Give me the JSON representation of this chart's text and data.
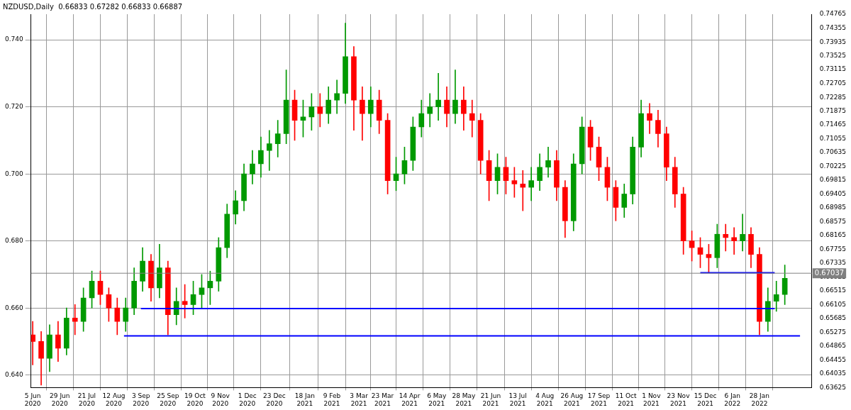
{
  "chart_data": {
    "type": "candlestick",
    "title": "NZDUSD,Daily  0.66833 0.67282 0.66833 0.66887",
    "x": [
      "2020-06-05",
      "2020-06-12",
      "2020-06-19",
      "2020-06-26",
      "2020-07-03",
      "2020-07-10",
      "2020-07-17",
      "2020-07-24",
      "2020-07-31",
      "2020-08-07",
      "2020-08-14",
      "2020-08-21",
      "2020-08-28",
      "2020-09-04",
      "2020-09-11",
      "2020-09-18",
      "2020-09-25",
      "2020-10-02",
      "2020-10-09",
      "2020-10-16",
      "2020-10-23",
      "2020-10-30",
      "2020-11-06",
      "2020-11-13",
      "2020-11-20",
      "2020-11-27",
      "2020-12-04",
      "2020-12-11",
      "2020-12-18",
      "2020-12-25",
      "2021-01-01",
      "2021-01-08",
      "2021-01-15",
      "2021-01-22",
      "2021-01-29",
      "2021-02-05",
      "2021-02-12",
      "2021-02-19",
      "2021-02-26",
      "2021-03-05",
      "2021-03-12",
      "2021-03-19",
      "2021-03-26",
      "2021-04-02",
      "2021-04-09",
      "2021-04-16",
      "2021-04-23",
      "2021-04-30",
      "2021-05-07",
      "2021-05-14",
      "2021-05-21",
      "2021-05-28",
      "2021-06-04",
      "2021-06-11",
      "2021-06-18",
      "2021-06-25",
      "2021-07-02",
      "2021-07-09",
      "2021-07-16",
      "2021-07-23",
      "2021-07-30",
      "2021-08-06",
      "2021-08-13",
      "2021-08-20",
      "2021-08-27",
      "2021-09-03",
      "2021-09-10",
      "2021-09-17",
      "2021-09-24",
      "2021-10-01",
      "2021-10-08",
      "2021-10-15",
      "2021-10-22",
      "2021-10-29",
      "2021-11-05",
      "2021-11-12",
      "2021-11-19",
      "2021-11-26",
      "2021-12-03",
      "2021-12-10",
      "2021-12-17",
      "2021-12-24",
      "2021-12-31",
      "2022-01-07",
      "2022-01-14",
      "2022-01-21",
      "2022-01-28",
      "2022-02-04",
      "2022-02-11",
      "2022-02-18"
    ],
    "ohlc": [
      [
        0.652,
        0.656,
        0.643,
        0.65
      ],
      [
        0.65,
        0.653,
        0.637,
        0.645
      ],
      [
        0.645,
        0.655,
        0.641,
        0.652
      ],
      [
        0.652,
        0.656,
        0.644,
        0.648
      ],
      [
        0.648,
        0.66,
        0.646,
        0.657
      ],
      [
        0.657,
        0.661,
        0.652,
        0.656
      ],
      [
        0.656,
        0.666,
        0.653,
        0.663
      ],
      [
        0.663,
        0.671,
        0.66,
        0.668
      ],
      [
        0.668,
        0.671,
        0.661,
        0.664
      ],
      [
        0.664,
        0.666,
        0.656,
        0.66
      ],
      [
        0.66,
        0.663,
        0.652,
        0.656
      ],
      [
        0.656,
        0.663,
        0.653,
        0.66
      ],
      [
        0.66,
        0.672,
        0.658,
        0.668
      ],
      [
        0.668,
        0.678,
        0.665,
        0.674
      ],
      [
        0.674,
        0.676,
        0.662,
        0.666
      ],
      [
        0.666,
        0.679,
        0.663,
        0.672
      ],
      [
        0.672,
        0.674,
        0.652,
        0.658
      ],
      [
        0.658,
        0.666,
        0.655,
        0.662
      ],
      [
        0.662,
        0.667,
        0.657,
        0.661
      ],
      [
        0.661,
        0.668,
        0.658,
        0.664
      ],
      [
        0.664,
        0.67,
        0.66,
        0.666
      ],
      [
        0.666,
        0.671,
        0.661,
        0.668
      ],
      [
        0.668,
        0.681,
        0.665,
        0.678
      ],
      [
        0.678,
        0.691,
        0.675,
        0.688
      ],
      [
        0.688,
        0.695,
        0.685,
        0.692
      ],
      [
        0.692,
        0.703,
        0.689,
        0.7
      ],
      [
        0.7,
        0.707,
        0.697,
        0.703
      ],
      [
        0.703,
        0.711,
        0.699,
        0.707
      ],
      [
        0.707,
        0.713,
        0.701,
        0.709
      ],
      [
        0.709,
        0.716,
        0.705,
        0.712
      ],
      [
        0.712,
        0.731,
        0.709,
        0.722
      ],
      [
        0.722,
        0.725,
        0.71,
        0.716
      ],
      [
        0.716,
        0.722,
        0.711,
        0.717
      ],
      [
        0.717,
        0.724,
        0.713,
        0.72
      ],
      [
        0.72,
        0.724,
        0.714,
        0.718
      ],
      [
        0.718,
        0.726,
        0.715,
        0.722
      ],
      [
        0.722,
        0.728,
        0.718,
        0.724
      ],
      [
        0.724,
        0.745,
        0.721,
        0.735
      ],
      [
        0.735,
        0.738,
        0.713,
        0.722
      ],
      [
        0.722,
        0.726,
        0.71,
        0.718
      ],
      [
        0.718,
        0.726,
        0.714,
        0.722
      ],
      [
        0.722,
        0.725,
        0.712,
        0.716
      ],
      [
        0.716,
        0.718,
        0.694,
        0.698
      ],
      [
        0.698,
        0.705,
        0.695,
        0.7
      ],
      [
        0.7,
        0.708,
        0.697,
        0.704
      ],
      [
        0.704,
        0.717,
        0.701,
        0.714
      ],
      [
        0.714,
        0.722,
        0.711,
        0.718
      ],
      [
        0.718,
        0.724,
        0.714,
        0.72
      ],
      [
        0.72,
        0.73,
        0.716,
        0.722
      ],
      [
        0.722,
        0.726,
        0.714,
        0.718
      ],
      [
        0.718,
        0.731,
        0.715,
        0.722
      ],
      [
        0.722,
        0.726,
        0.713,
        0.718
      ],
      [
        0.718,
        0.722,
        0.711,
        0.716
      ],
      [
        0.716,
        0.718,
        0.7,
        0.704
      ],
      [
        0.704,
        0.707,
        0.692,
        0.698
      ],
      [
        0.698,
        0.706,
        0.694,
        0.702
      ],
      [
        0.702,
        0.705,
        0.694,
        0.698
      ],
      [
        0.698,
        0.702,
        0.693,
        0.697
      ],
      [
        0.697,
        0.701,
        0.689,
        0.696
      ],
      [
        0.696,
        0.702,
        0.692,
        0.698
      ],
      [
        0.698,
        0.706,
        0.695,
        0.702
      ],
      [
        0.702,
        0.708,
        0.699,
        0.704
      ],
      [
        0.704,
        0.707,
        0.692,
        0.696
      ],
      [
        0.696,
        0.698,
        0.681,
        0.686
      ],
      [
        0.686,
        0.706,
        0.683,
        0.703
      ],
      [
        0.703,
        0.717,
        0.7,
        0.714
      ],
      [
        0.714,
        0.716,
        0.704,
        0.708
      ],
      [
        0.708,
        0.711,
        0.698,
        0.702
      ],
      [
        0.702,
        0.705,
        0.692,
        0.696
      ],
      [
        0.696,
        0.698,
        0.686,
        0.69
      ],
      [
        0.69,
        0.697,
        0.687,
        0.694
      ],
      [
        0.694,
        0.711,
        0.691,
        0.708
      ],
      [
        0.708,
        0.722,
        0.705,
        0.718
      ],
      [
        0.718,
        0.721,
        0.712,
        0.716
      ],
      [
        0.716,
        0.719,
        0.708,
        0.712
      ],
      [
        0.712,
        0.714,
        0.698,
        0.702
      ],
      [
        0.702,
        0.705,
        0.69,
        0.694
      ],
      [
        0.694,
        0.696,
        0.676,
        0.68
      ],
      [
        0.68,
        0.683,
        0.674,
        0.678
      ],
      [
        0.678,
        0.681,
        0.672,
        0.676
      ],
      [
        0.676,
        0.679,
        0.6705,
        0.675
      ],
      [
        0.675,
        0.685,
        0.672,
        0.682
      ],
      [
        0.682,
        0.685,
        0.677,
        0.681
      ],
      [
        0.681,
        0.684,
        0.676,
        0.68
      ],
      [
        0.68,
        0.688,
        0.677,
        0.682
      ],
      [
        0.682,
        0.684,
        0.672,
        0.676
      ],
      [
        0.676,
        0.678,
        0.652,
        0.656
      ],
      [
        0.656,
        0.666,
        0.653,
        0.662
      ],
      [
        0.662,
        0.668,
        0.659,
        0.664
      ],
      [
        0.664,
        0.67282,
        0.661,
        0.66887
      ]
    ],
    "colors": [
      "#ff0000",
      "#ff0000",
      "#009900",
      "#ff0000",
      "#009900",
      "#ff0000",
      "#009900",
      "#009900",
      "#ff0000",
      "#ff0000",
      "#ff0000",
      "#009900",
      "#009900",
      "#009900",
      "#ff0000",
      "#009900",
      "#ff0000",
      "#009900",
      "#ff0000",
      "#009900",
      "#009900",
      "#009900",
      "#009900",
      "#009900",
      "#009900",
      "#009900",
      "#009900",
      "#009900",
      "#009900",
      "#009900",
      "#009900",
      "#ff0000",
      "#009900",
      "#009900",
      "#ff0000",
      "#009900",
      "#009900",
      "#009900",
      "#ff0000",
      "#ff0000",
      "#009900",
      "#ff0000",
      "#ff0000",
      "#009900",
      "#009900",
      "#009900",
      "#009900",
      "#009900",
      "#009900",
      "#ff0000",
      "#009900",
      "#ff0000",
      "#ff0000",
      "#ff0000",
      "#ff0000",
      "#009900",
      "#ff0000",
      "#ff0000",
      "#ff0000",
      "#009900",
      "#009900",
      "#009900",
      "#ff0000",
      "#ff0000",
      "#009900",
      "#009900",
      "#ff0000",
      "#ff0000",
      "#ff0000",
      "#ff0000",
      "#009900",
      "#009900",
      "#009900",
      "#ff0000",
      "#ff0000",
      "#ff0000",
      "#ff0000",
      "#ff0000",
      "#ff0000",
      "#ff0000",
      "#ff0000",
      "#009900",
      "#ff0000",
      "#ff0000",
      "#009900",
      "#ff0000",
      "#ff0000",
      "#009900",
      "#009900",
      "#009900"
    ],
    "series": [
      {
        "type": "line",
        "color": "#0000ff",
        "x": [
          "2021-12-10",
          "2022-02-10"
        ],
        "values": [
          0.6705,
          0.6705
        ]
      },
      {
        "type": "line",
        "color": "#0000ff",
        "x": [
          "2020-09-03",
          "2022-02-10"
        ],
        "values": [
          0.6598,
          0.6598
        ]
      },
      {
        "type": "line",
        "color": "#0000ff",
        "x": [
          "2020-08-20",
          "2022-03-03"
        ],
        "values": [
          0.6517,
          0.6517
        ]
      }
    ],
    "ref_lines": [
      {
        "axis": "y2",
        "value": 0.67037,
        "label": "0.67037",
        "color": "#808080"
      }
    ],
    "xlim": [
      "2020-06-04",
      "2022-03-14"
    ],
    "xticks": [
      {
        "value": "2020-06-05",
        "label": "5 Jun 2020"
      },
      {
        "value": "2020-06-29",
        "label": "29 Jun 2020"
      },
      {
        "value": "2020-07-21",
        "label": "21 Jul 2020"
      },
      {
        "value": "2020-08-12",
        "label": "12 Aug 2020"
      },
      {
        "value": "2020-09-03",
        "label": "3 Sep 2020"
      },
      {
        "value": "2020-09-25",
        "label": "25 Sep 2020"
      },
      {
        "value": "2020-10-19",
        "label": "19 Oct 2020"
      },
      {
        "value": "2020-11-09",
        "label": "9 Nov 2020"
      },
      {
        "value": "2020-12-01",
        "label": "1 Dec 2020"
      },
      {
        "value": "2020-12-23",
        "label": "23 Dec 2020"
      },
      {
        "value": "2021-01-18",
        "label": "18 Jan 2021"
      },
      {
        "value": "2021-02-09",
        "label": "9 Feb 2021"
      },
      {
        "value": "2021-03-03",
        "label": "3 Mar 2021"
      },
      {
        "value": "2021-03-23",
        "label": "23 Mar 2021"
      },
      {
        "value": "2021-04-14",
        "label": "14 Apr 2021"
      },
      {
        "value": "2021-05-06",
        "label": "6 May 2021"
      },
      {
        "value": "2021-05-28",
        "label": "28 May 2021"
      },
      {
        "value": "2021-06-21",
        "label": "21 Jun 2021"
      },
      {
        "value": "2021-07-13",
        "label": "13 Jul 2021"
      },
      {
        "value": "2021-08-04",
        "label": "4 Aug 2021"
      },
      {
        "value": "2021-08-26",
        "label": "26 Aug 2021"
      },
      {
        "value": "2021-09-17",
        "label": "17 Sep 2021"
      },
      {
        "value": "2021-10-11",
        "label": "11 Oct 2021"
      },
      {
        "value": "2021-11-01",
        "label": "1 Nov 2021"
      },
      {
        "value": "2021-11-23",
        "label": "23 Nov 2021"
      },
      {
        "value": "2021-12-15",
        "label": "15 Dec 2021"
      },
      {
        "value": "2022-01-06",
        "label": "6 Jan 2022"
      },
      {
        "value": "2022-01-28",
        "label": "28 Jan 2022"
      }
    ],
    "ylim": [
      0.63625,
      0.74765
    ],
    "yticks": [
      {
        "value": 0.64,
        "label": "0.640"
      },
      {
        "value": 0.66,
        "label": "0.660"
      },
      {
        "value": 0.68,
        "label": "0.680"
      },
      {
        "value": 0.7,
        "label": "0.700"
      },
      {
        "value": 0.72,
        "label": "0.720"
      },
      {
        "value": 0.74,
        "label": "0.740"
      }
    ],
    "y2lim": [
      0.63625,
      0.74765
    ],
    "y2ticks": [
      0.63625,
      0.64035,
      0.64455,
      0.64865,
      0.65275,
      0.65685,
      0.66105,
      0.66515,
      0.66925,
      0.67335,
      0.67755,
      0.68165,
      0.68575,
      0.68985,
      0.69405,
      0.69815,
      0.70225,
      0.70635,
      0.71055,
      0.71465,
      0.71875,
      0.72285,
      0.72705,
      0.73115,
      0.73525,
      0.73935,
      0.74355,
      0.74765
    ],
    "grid": true,
    "legend": false
  }
}
